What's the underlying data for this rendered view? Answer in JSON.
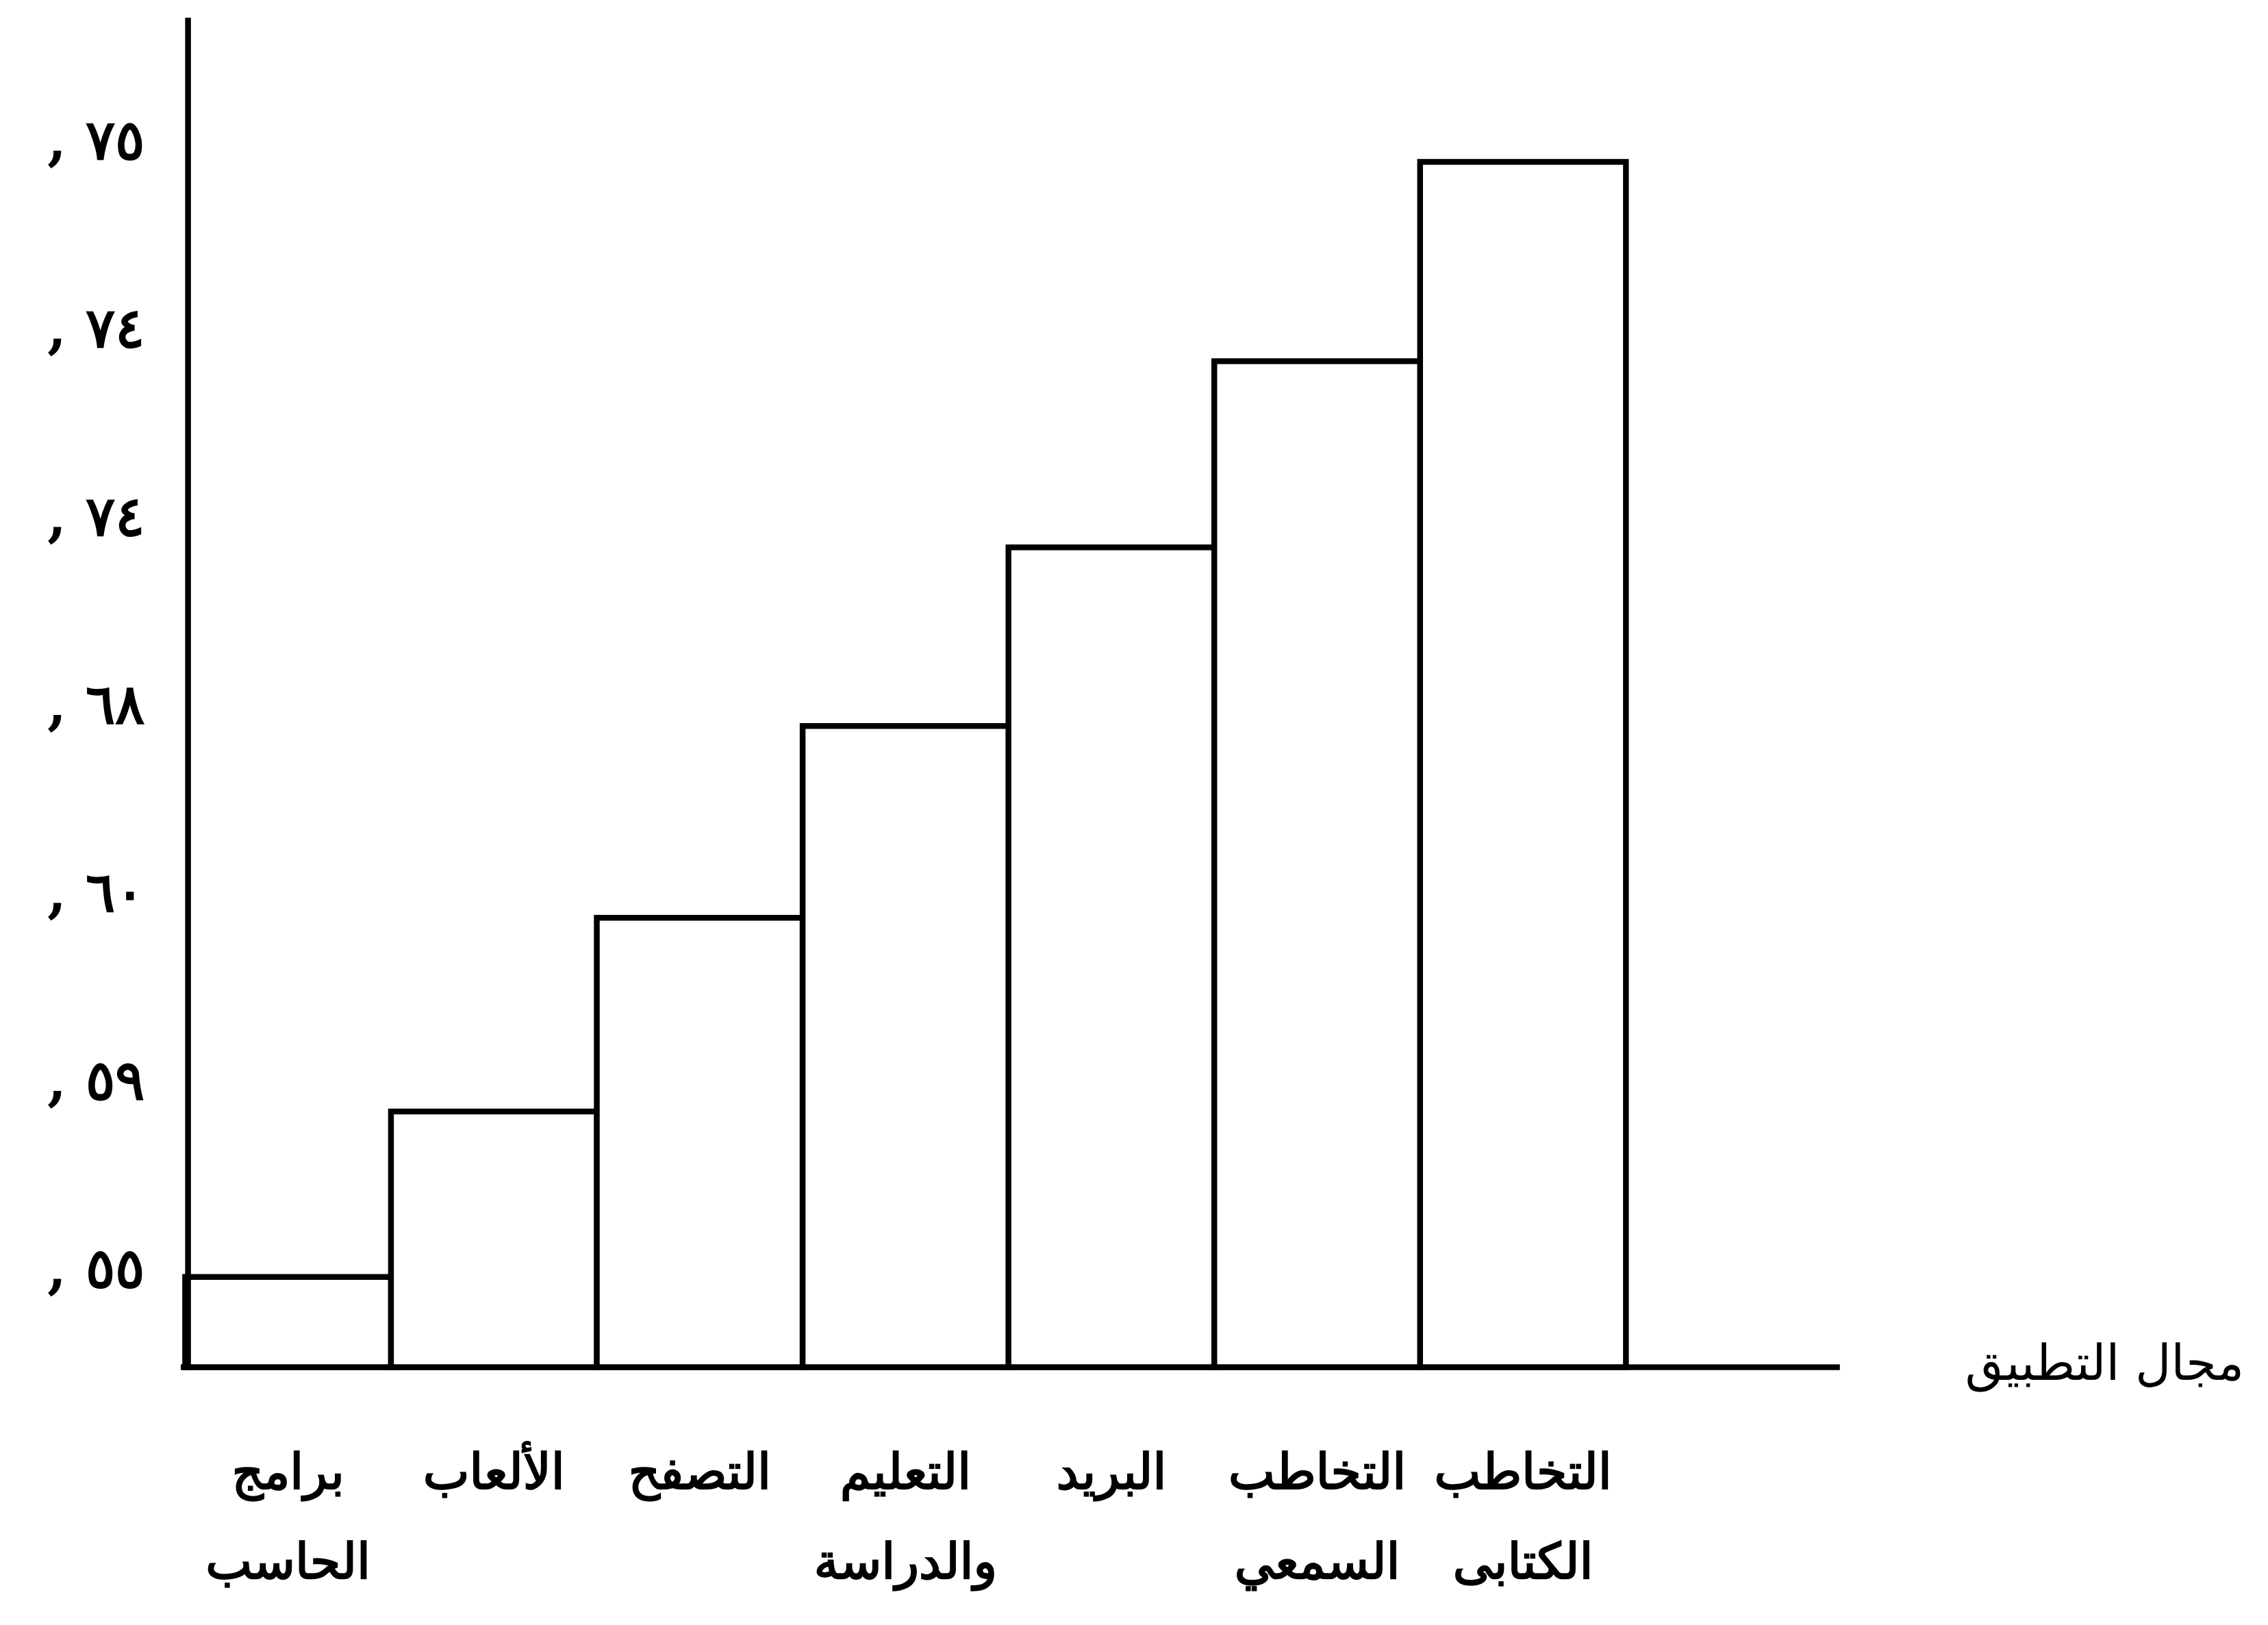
{
  "chart_data": {
    "type": "bar",
    "x_label": "مجال التطبيق",
    "categories": [
      "برامج\nالحاسب",
      "الألعاب",
      "التصفح",
      "التعليم\nوالدراسة",
      "البريد",
      "التخاطب\nالسمعي",
      "التخاطب\nالكتابى"
    ],
    "values": [
      0.48,
      1.36,
      2.39,
      3.41,
      4.36,
      5.35,
      6.41
    ],
    "color": "#ffffff",
    "edge_color": "#000000",
    "ylim": [
      0,
      7.2
    ],
    "yticks": [
      {
        "value": 0.5,
        "label": ", ٥٥"
      },
      {
        "value": 1.5,
        "label": ", ٥٩"
      },
      {
        "value": 2.5,
        "label": ", ٦٠"
      },
      {
        "value": 3.5,
        "label": ", ٦٨"
      },
      {
        "value": 4.5,
        "label": ", ٧٤"
      },
      {
        "value": 5.5,
        "label": ", ٧٤"
      },
      {
        "value": 6.5,
        "label": ", ٧٥"
      }
    ],
    "grid": false
  }
}
